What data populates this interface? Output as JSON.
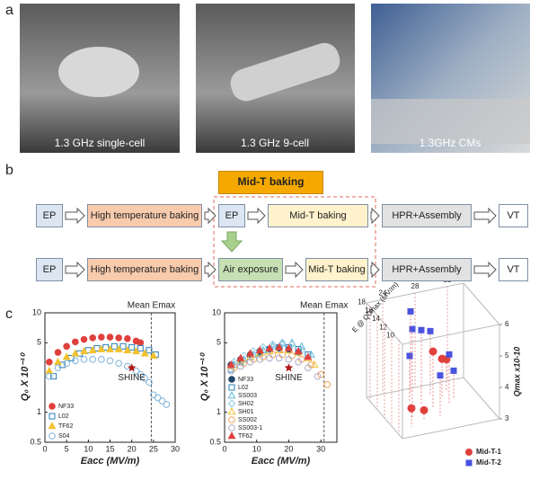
{
  "panel_labels": [
    "a",
    "b",
    "c"
  ],
  "photos": [
    {
      "caption": "1.3 GHz single-cell"
    },
    {
      "caption": "1.3 GHz 9-cell"
    },
    {
      "caption": "1.3GHz CMs"
    }
  ],
  "flow": {
    "header": "Mid-T baking",
    "rows": [
      [
        "EP",
        "High temperature baking",
        "EP",
        "Mid-T baking",
        "HPR+Assembly",
        "VT"
      ],
      [
        "EP",
        "High temperature baking",
        "Air exposure",
        "Mid-T baking",
        "HPR+Assembly",
        "VT"
      ]
    ]
  },
  "chart_data": [
    {
      "type": "scatter",
      "xlabel": "Eacc (MV/m)",
      "ylabel": "Q₀ X 10⁻¹⁰",
      "log_y": true,
      "xlim": [
        0,
        30
      ],
      "xticks": [
        0,
        5,
        10,
        15,
        20,
        25,
        30
      ],
      "ylim": [
        0.5,
        10
      ],
      "yticks": [
        0.5,
        1,
        5,
        10
      ],
      "legend": "lower left",
      "mean_line": {
        "label": "Mean Emax",
        "x": 24.5
      },
      "shine": {
        "label": "SHINE",
        "x": 20,
        "y": 2.8,
        "color": "#b01818"
      },
      "series": [
        {
          "name": "NF33",
          "color": "#e0403c",
          "marker": "circle",
          "filled": true,
          "x": [
            1,
            3,
            5,
            7,
            9,
            11,
            13,
            15,
            17,
            19,
            21,
            22
          ],
          "values": [
            3.2,
            4.0,
            4.6,
            5.1,
            5.4,
            5.6,
            5.7,
            5.7,
            5.6,
            5.5,
            5.2,
            5.0
          ]
        },
        {
          "name": "L02",
          "color": "#2a7fb8",
          "marker": "square",
          "filled": false,
          "x": [
            2,
            4,
            6,
            8,
            10,
            12,
            14,
            16,
            18,
            20,
            22,
            24,
            25.5
          ],
          "values": [
            2.3,
            3.0,
            3.5,
            3.9,
            4.2,
            4.4,
            4.5,
            4.6,
            4.6,
            4.5,
            4.4,
            4.2,
            3.8
          ]
        },
        {
          "name": "TF62",
          "color": "#f2c12e",
          "marker": "triangle",
          "filled": true,
          "x": [
            1,
            3,
            5,
            7,
            9,
            11,
            13,
            15,
            17,
            19,
            21,
            23,
            25
          ],
          "values": [
            2.6,
            3.2,
            3.6,
            3.9,
            4.1,
            4.2,
            4.3,
            4.3,
            4.3,
            4.2,
            4.1,
            3.9,
            3.7
          ]
        },
        {
          "name": "S04",
          "color": "#7fb2d9",
          "marker": "circle",
          "filled": false,
          "x": [
            1,
            3,
            5,
            7,
            9,
            11,
            13,
            15,
            17,
            19,
            21,
            22,
            23,
            24,
            25,
            26,
            27,
            28
          ],
          "values": [
            2.3,
            2.8,
            3.1,
            3.3,
            3.4,
            3.4,
            3.4,
            3.3,
            3.1,
            2.9,
            2.6,
            2.4,
            2.2,
            2.0,
            1.5,
            1.4,
            1.3,
            1.2
          ]
        }
      ]
    },
    {
      "type": "scatter",
      "xlabel": "Eacc (MV/m)",
      "ylabel": "Q₀ X 10⁻¹⁰",
      "log_y": true,
      "xlim": [
        0,
        35
      ],
      "xticks": [
        0,
        10,
        20,
        30
      ],
      "ylim": [
        0.5,
        10
      ],
      "yticks": [
        0.5,
        1,
        5,
        10
      ],
      "legend": "lower left",
      "mean_line": {
        "label": "Mean Emax",
        "x": 31
      },
      "shine": {
        "label": "SHINE",
        "x": 20,
        "y": 2.8,
        "color": "#b01818"
      },
      "series": [
        {
          "name": "NF33",
          "color": "#24476b",
          "marker": "circle",
          "filled": true,
          "x": [
            2,
            5,
            8,
            11,
            14,
            17,
            20,
            23
          ],
          "values": [
            3.0,
            3.4,
            3.8,
            4.1,
            4.3,
            4.4,
            4.3,
            4.0
          ]
        },
        {
          "name": "L02",
          "color": "#2a7fb8",
          "marker": "square",
          "filled": false,
          "x": [
            2,
            5,
            8,
            11,
            14,
            17,
            20,
            23,
            26
          ],
          "values": [
            2.7,
            3.2,
            3.6,
            4.0,
            4.3,
            4.5,
            4.5,
            4.3,
            3.8
          ]
        },
        {
          "name": "SS003",
          "color": "#5fb7d6",
          "marker": "triangle",
          "filled": false,
          "x": [
            3,
            6,
            9,
            12,
            15,
            18,
            21,
            24,
            27
          ],
          "values": [
            3.0,
            3.4,
            3.8,
            4.2,
            4.6,
            4.9,
            5.0,
            4.6,
            3.8
          ]
        },
        {
          "name": "SH02",
          "color": "#8ccbe0",
          "marker": "diamond",
          "filled": false,
          "x": [
            3,
            6,
            9,
            12,
            15,
            18,
            21,
            24
          ],
          "values": [
            3.2,
            3.7,
            4.1,
            4.5,
            4.8,
            5.0,
            4.8,
            4.2
          ]
        },
        {
          "name": "SH01",
          "color": "#f2c12e",
          "marker": "triangle",
          "filled": false,
          "x": [
            2,
            5,
            8,
            11,
            14,
            17,
            20,
            23,
            26,
            28
          ],
          "values": [
            2.9,
            3.3,
            3.6,
            3.9,
            4.1,
            4.2,
            4.2,
            4.0,
            3.5,
            3.0
          ]
        },
        {
          "name": "SS002",
          "color": "#f0a35a",
          "marker": "circle",
          "filled": false,
          "x": [
            3,
            6,
            9,
            12,
            15,
            18,
            21,
            24,
            27,
            30,
            32
          ],
          "values": [
            2.8,
            3.1,
            3.4,
            3.6,
            3.8,
            3.8,
            3.7,
            3.4,
            3.0,
            2.4,
            1.9
          ]
        },
        {
          "name": "SS003-1",
          "color": "#a8a8c8",
          "marker": "circle",
          "filled": false,
          "x": [
            2,
            5,
            8,
            11,
            14,
            17,
            20,
            23,
            26,
            29
          ],
          "values": [
            2.6,
            2.9,
            3.2,
            3.4,
            3.5,
            3.5,
            3.4,
            3.2,
            2.8,
            2.3
          ]
        },
        {
          "name": "TF62",
          "color": "#e0403c",
          "marker": "triangle",
          "filled": true,
          "x": [
            2,
            5,
            8,
            11,
            14,
            17,
            20,
            23,
            26
          ],
          "values": [
            3.0,
            3.5,
            3.9,
            4.2,
            4.4,
            4.5,
            4.4,
            4.1,
            3.6
          ]
        }
      ]
    },
    {
      "type": "scatter3d",
      "xlabel": "Emax (MV/m)",
      "ylabel": "E @ Q0max (MV/m)",
      "zlabel": "Qmax x10-10",
      "xlim": [
        22,
        34
      ],
      "xticks": [
        24,
        28,
        32
      ],
      "ylim": [
        9,
        19
      ],
      "yticks": [
        10,
        12,
        14,
        16,
        18
      ],
      "zlim": [
        3,
        6
      ],
      "zticks": [
        3,
        4,
        5,
        6
      ],
      "legend": "lower right",
      "series": [
        {
          "name": "Mid-T-1",
          "color": "#e0403c",
          "marker": "circle",
          "x": [
            26,
            30,
            24,
            28,
            31
          ],
          "y": [
            12,
            16,
            11,
            14,
            17
          ],
          "values": [
            3.3,
            4.2,
            3.6,
            4.8,
            4.0
          ]
        },
        {
          "name": "Mid-T-2",
          "color": "#4a52e0",
          "marker": "square",
          "x": [
            25,
            27,
            29,
            30,
            26,
            28,
            31,
            27
          ],
          "y": [
            13,
            15,
            17,
            14,
            16,
            12,
            15,
            18
          ],
          "values": [
            5.8,
            5.4,
            5.0,
            4.6,
            4.5,
            4.3,
            3.9,
            5.6
          ]
        }
      ]
    }
  ]
}
